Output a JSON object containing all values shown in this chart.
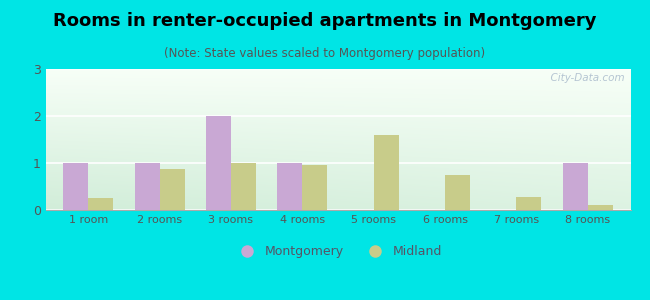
{
  "title": "Rooms in renter-occupied apartments in Montgomery",
  "subtitle": "(Note: State values scaled to Montgomery population)",
  "categories": [
    "1 room",
    "2 rooms",
    "3 rooms",
    "4 rooms",
    "5 rooms",
    "6 rooms",
    "7 rooms",
    "8 rooms"
  ],
  "montgomery_values": [
    1.0,
    1.0,
    2.0,
    1.0,
    0.0,
    0.0,
    0.0,
    1.0
  ],
  "midland_values": [
    0.25,
    0.88,
    1.0,
    0.95,
    1.6,
    0.75,
    0.28,
    0.1
  ],
  "montgomery_color": "#c9a8d4",
  "midland_color": "#c8cc8a",
  "background_color": "#00e5e5",
  "ylim": [
    0,
    3
  ],
  "yticks": [
    0,
    1,
    2,
    3
  ],
  "bar_width": 0.35,
  "title_fontsize": 13,
  "subtitle_fontsize": 8.5,
  "watermark": "  City-Data.com",
  "legend_text_color": "#555566"
}
